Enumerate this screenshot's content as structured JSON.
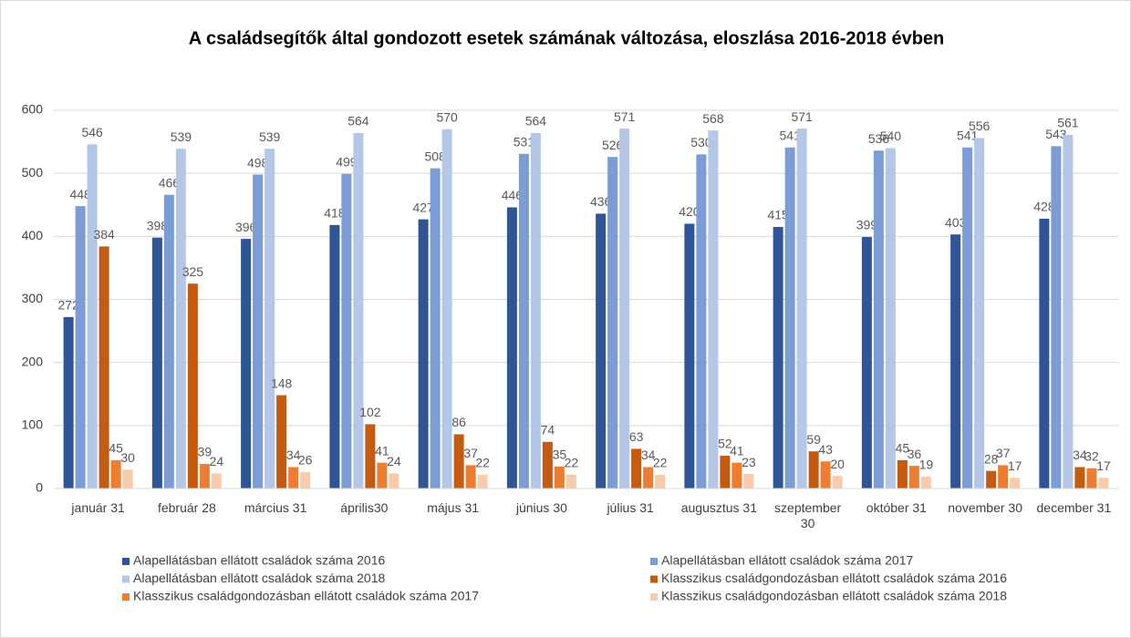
{
  "chart_data": {
    "type": "bar",
    "title": "A családsegítők által gondozott esetek számának változása, eloszlása 2016-2018 évben",
    "categories": [
      "január 31",
      "február 28",
      "március 31",
      "április30",
      "május 31",
      "június 30",
      "július 31",
      "augusztus 31",
      "szeptember 30",
      "október 31",
      "november 30",
      "december 31"
    ],
    "series": [
      {
        "name": "Alapellátásban ellátott családok száma 2016",
        "color": "#2f5597",
        "values": [
          272,
          398,
          396,
          418,
          427,
          446,
          436,
          420,
          415,
          399,
          403,
          428
        ]
      },
      {
        "name": "Alapellátásban ellátott családok száma 2017",
        "color": "#7b9cd5",
        "values": [
          448,
          466,
          498,
          499,
          508,
          531,
          526,
          530,
          541,
          536,
          541,
          543
        ]
      },
      {
        "name": "Alapellátásban ellátott családok száma 2018",
        "color": "#b4c7e7",
        "values": [
          546,
          539,
          539,
          564,
          570,
          564,
          571,
          568,
          571,
          540,
          556,
          561
        ]
      },
      {
        "name": "Klasszikus családgondozásban ellátott családok száma 2016",
        "color": "#c55a11",
        "values": [
          384,
          325,
          148,
          102,
          86,
          74,
          63,
          52,
          59,
          45,
          28,
          34
        ]
      },
      {
        "name": "Klasszikus családgondozásban ellátott családok száma 2017",
        "color": "#ed7d31",
        "values": [
          45,
          39,
          34,
          41,
          37,
          35,
          34,
          41,
          43,
          36,
          37,
          32
        ]
      },
      {
        "name": "Klasszikus családgondozásban ellátott családok száma 2018",
        "color": "#f8cbad",
        "values": [
          30,
          24,
          26,
          24,
          22,
          22,
          22,
          23,
          20,
          19,
          17,
          17
        ]
      }
    ],
    "ylim": [
      0,
      600
    ],
    "yticks": [
      0,
      100,
      200,
      300,
      400,
      500,
      600
    ],
    "grid": true
  }
}
